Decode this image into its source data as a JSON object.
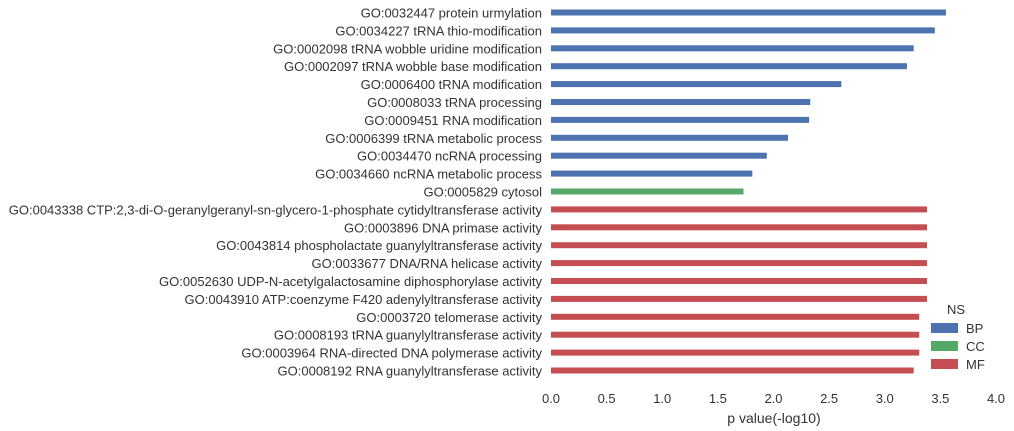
{
  "chart_data": {
    "type": "bar",
    "orientation": "horizontal",
    "title": "",
    "xlabel": "p value(-log10)",
    "ylabel": "",
    "xlim": [
      0,
      4
    ],
    "xticks": [
      "0.0",
      "0.5",
      "1.0",
      "1.5",
      "2.0",
      "2.5",
      "3.0",
      "3.5",
      "4.0"
    ],
    "grid": false,
    "legend": {
      "title": "NS",
      "placement": "lower-right",
      "entries": [
        {
          "label": "BP",
          "color": "#4c72b0"
        },
        {
          "label": "CC",
          "color": "#55a868"
        },
        {
          "label": "MF",
          "color": "#c44e52"
        }
      ]
    },
    "categories": [
      "GO:0032447 protein urmylation",
      "GO:0034227 tRNA thio-modification",
      "GO:0002098 tRNA wobble uridine modification",
      "GO:0002097 tRNA wobble base modification",
      "GO:0006400 tRNA modification",
      "GO:0008033 tRNA processing",
      "GO:0009451 RNA modification",
      "GO:0006399 tRNA metabolic process",
      "GO:0034470 ncRNA processing",
      "GO:0034660 ncRNA metabolic process",
      "GO:0005829 cytosol",
      "GO:0043338 CTP:2,3-di-O-geranylgeranyl-sn-glycero-1-phosphate cytidyltransferase activity",
      "GO:0003896 DNA primase activity",
      "GO:0043814 phospholactate guanylyltransferase activity",
      "GO:0033677 DNA/RNA helicase activity",
      "GO:0052630 UDP-N-acetylgalactosamine diphosphorylase activity",
      "GO:0043910 ATP:coenzyme F420 adenylyltransferase activity",
      "GO:0003720 telomerase activity",
      "GO:0008193 tRNA guanylyltransferase activity",
      "GO:0003964 RNA-directed DNA polymerase activity",
      "GO:0008192 RNA guanylyltransferase activity"
    ],
    "values": [
      3.55,
      3.45,
      3.26,
      3.2,
      2.61,
      2.33,
      2.32,
      2.13,
      1.94,
      1.81,
      1.73,
      3.38,
      3.38,
      3.38,
      3.38,
      3.38,
      3.38,
      3.31,
      3.31,
      3.31,
      3.26
    ],
    "groups": [
      "BP",
      "BP",
      "BP",
      "BP",
      "BP",
      "BP",
      "BP",
      "BP",
      "BP",
      "BP",
      "CC",
      "MF",
      "MF",
      "MF",
      "MF",
      "MF",
      "MF",
      "MF",
      "MF",
      "MF",
      "MF"
    ]
  }
}
